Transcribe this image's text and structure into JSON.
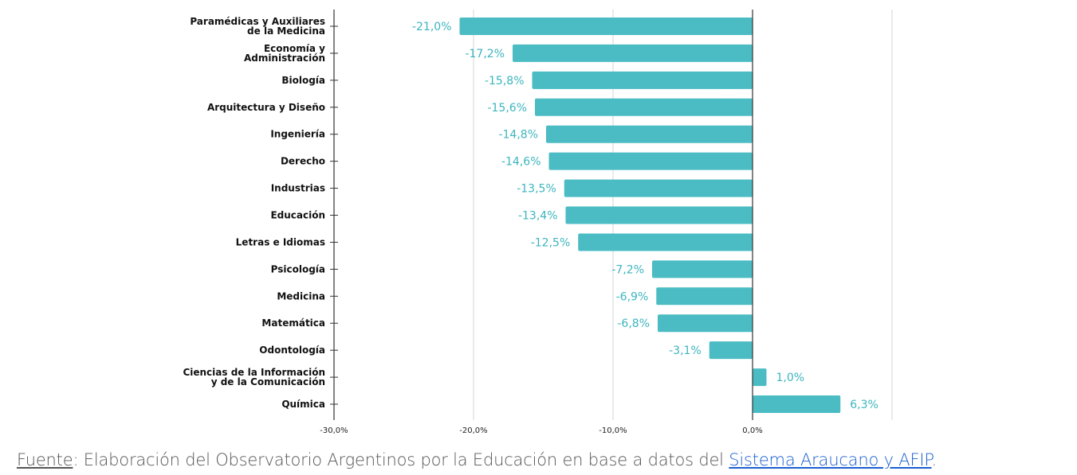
{
  "chart_data": {
    "type": "bar",
    "orientation": "horizontal",
    "categories": [
      [
        "Paramédicas y Auxiliares",
        "de la Medicina"
      ],
      [
        "Economía y",
        "Administración"
      ],
      [
        "Biología"
      ],
      [
        "Arquitectura y Diseño"
      ],
      [
        "Ingeniería"
      ],
      [
        "Derecho"
      ],
      [
        "Industrias"
      ],
      [
        "Educación"
      ],
      [
        "Letras e Idiomas"
      ],
      [
        "Psicología"
      ],
      [
        "Medicina"
      ],
      [
        "Matemática"
      ],
      [
        "Odontología"
      ],
      [
        "Ciencias de la Información",
        "y de la Comunicación"
      ],
      [
        "Química"
      ]
    ],
    "values": [
      -21.0,
      -17.2,
      -15.8,
      -15.6,
      -14.8,
      -14.6,
      -13.5,
      -13.4,
      -12.5,
      -7.2,
      -6.9,
      -6.8,
      -3.1,
      1.0,
      6.3
    ],
    "value_labels": [
      "-21,0%",
      "-17,2%",
      "-15,8%",
      "-15,6%",
      "-14,8%",
      "-14,6%",
      "-13,5%",
      "-13,4%",
      "-12,5%",
      "-7,2%",
      "-6,9%",
      "-6,8%",
      "-3,1%",
      "1,0%",
      "6,3%"
    ],
    "x_ticks": [
      -30,
      -20,
      -10,
      0
    ],
    "x_tick_labels": [
      "-30,0%",
      "-20,0%",
      "-10,0%",
      "0,0%"
    ],
    "xlim": [
      -30,
      10
    ],
    "grid": true,
    "bar_color": "#4bbcc4",
    "label_color": "#3db5be"
  },
  "footer": {
    "source_label": "Fuente",
    "text": ": Elaboración del Observatorio Argentinos por la Educación en base a datos del ",
    "link": "Sistema Araucano y AFIP",
    "end": "."
  }
}
